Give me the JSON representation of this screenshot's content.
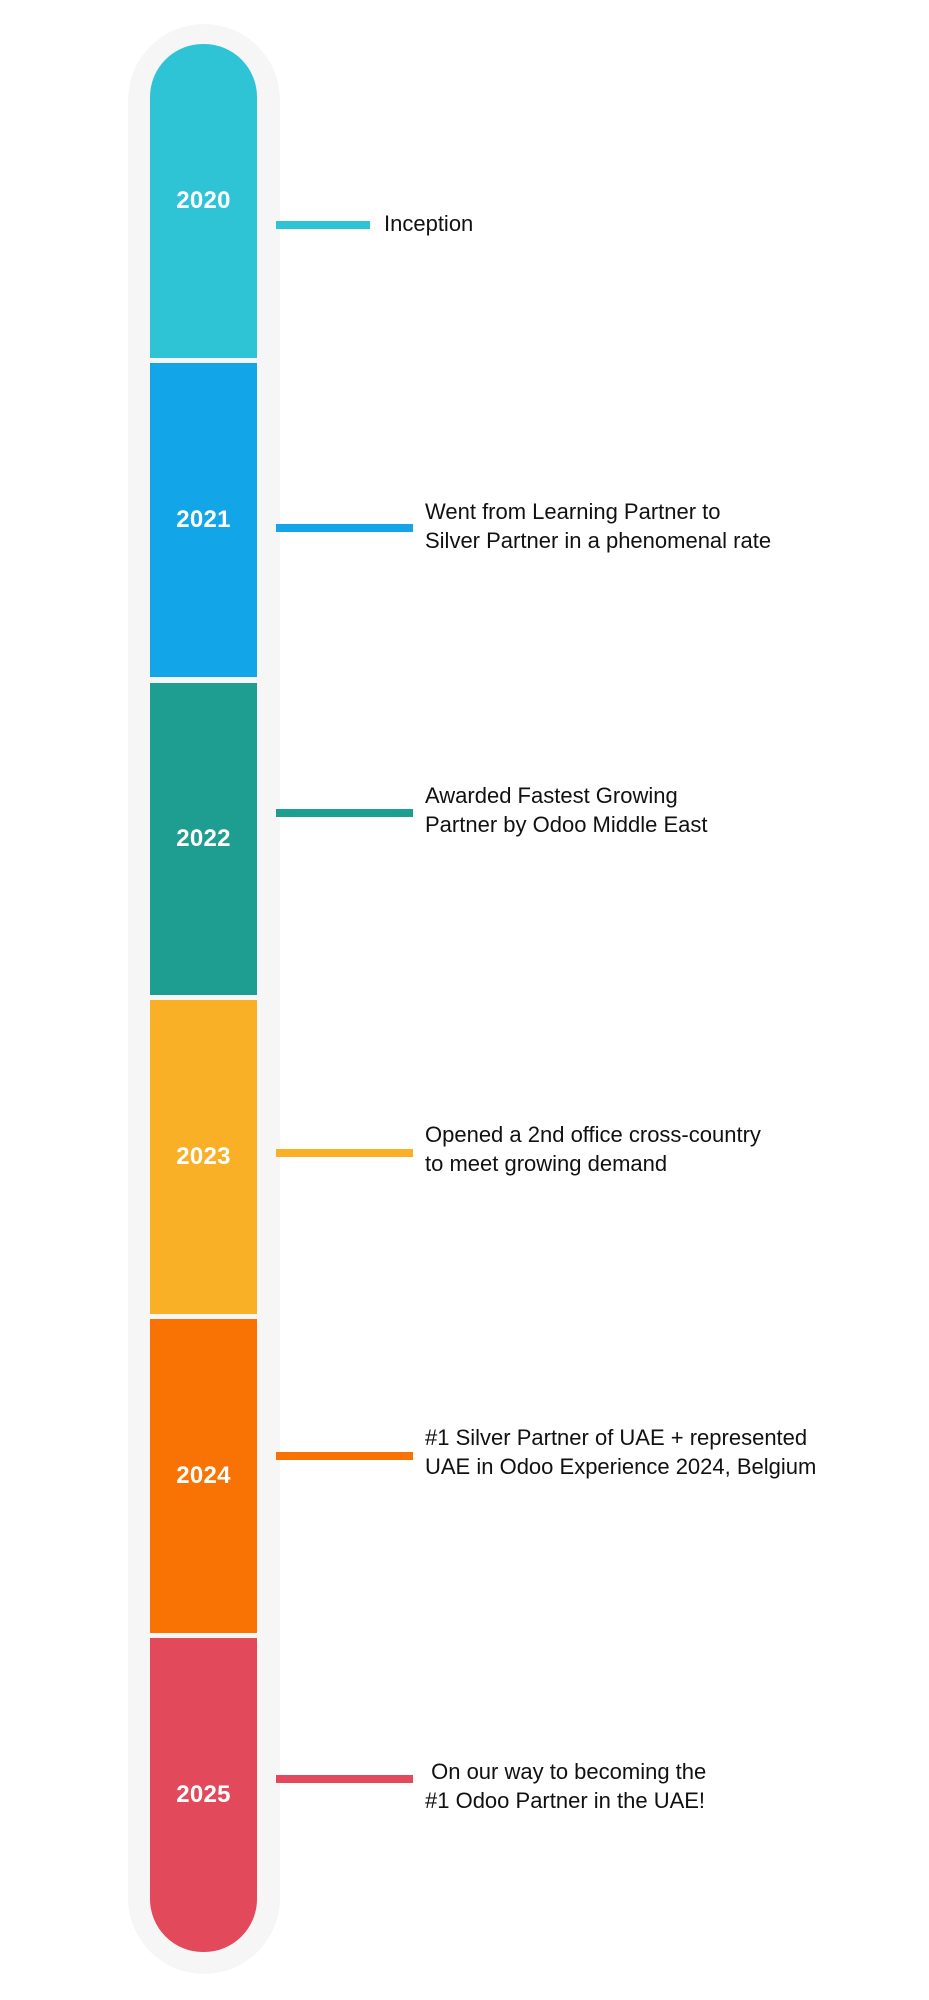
{
  "milestones": [
    {
      "year": "2020",
      "color": "#2EC4D6",
      "lines": [
        "Inception"
      ]
    },
    {
      "year": "2021",
      "color": "#12A6E8",
      "lines": [
        "Went from Learning Partner to",
        "Silver Partner in a phenomenal rate"
      ]
    },
    {
      "year": "2022",
      "color": "#1E9E91",
      "lines": [
        "Awarded Fastest Growing",
        "Partner by Odoo Middle East"
      ]
    },
    {
      "year": "2023",
      "color": "#F9B026",
      "lines": [
        "Opened a 2nd office cross-country",
        "to meet growing demand"
      ]
    },
    {
      "year": "2024",
      "color": "#F97304",
      "lines": [
        "#1 Silver Partner of UAE + represented",
        "UAE in Odoo Experience 2024, Belgium"
      ]
    },
    {
      "year": "2025",
      "color": "#E2495B",
      "lines": [
        " On our way to becoming the",
        "#1 Odoo Partner in the UAE!"
      ]
    }
  ]
}
